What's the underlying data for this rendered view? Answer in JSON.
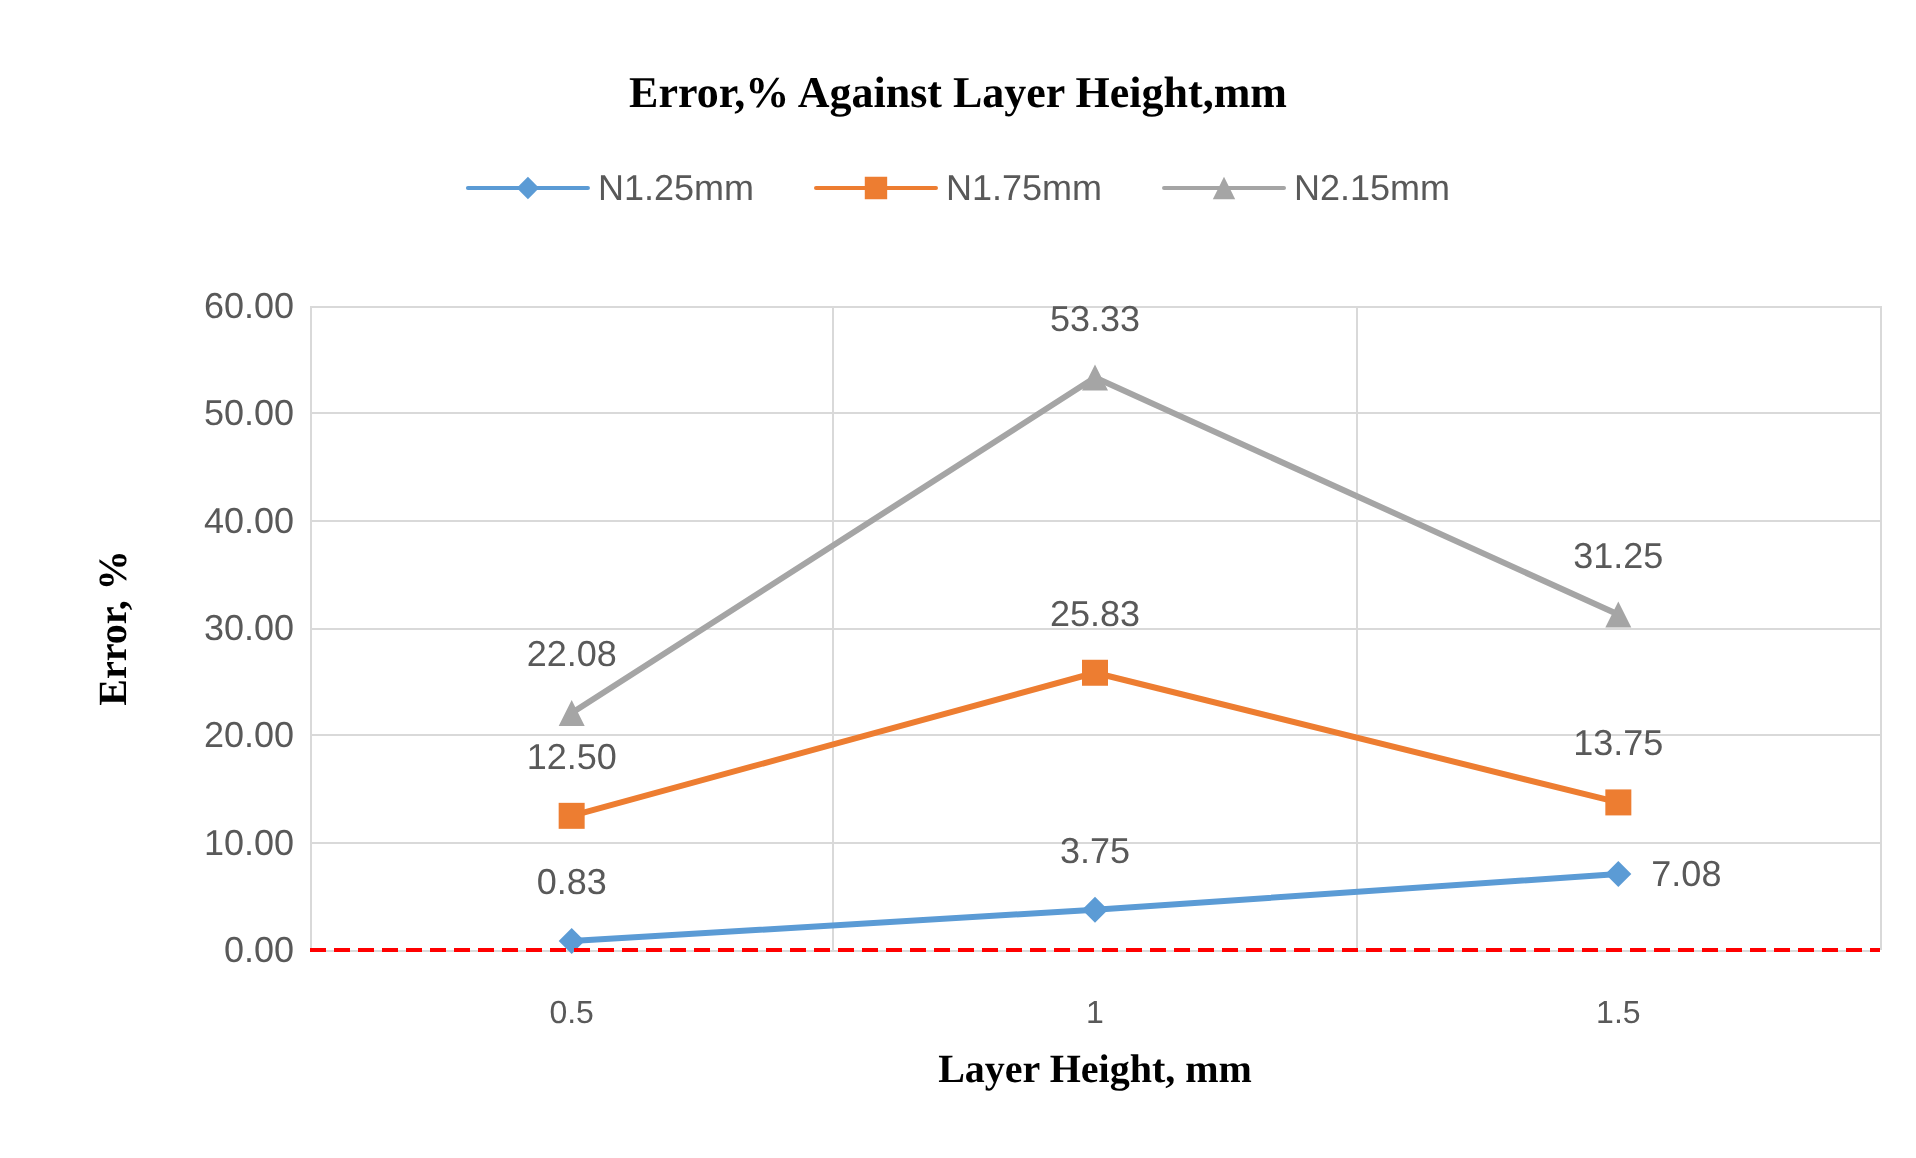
{
  "chart_data": {
    "type": "line",
    "title": "Error,% Against Layer Height,mm",
    "xlabel": "Layer Height, mm",
    "ylabel": "Error, %",
    "categories": [
      "0.5",
      "1",
      "1.5"
    ],
    "series": [
      {
        "name": "N1.25mm",
        "color": "#5b9bd5",
        "marker": "diamond",
        "values": [
          0.83,
          3.75,
          7.08
        ],
        "value_labels": [
          "0.83",
          "3.75",
          "7.08"
        ]
      },
      {
        "name": "N1.75mm",
        "color": "#ed7d31",
        "marker": "square",
        "values": [
          12.5,
          25.83,
          13.75
        ],
        "value_labels": [
          "12.50",
          "25.83",
          "13.75"
        ]
      },
      {
        "name": "N2.15mm",
        "color": "#a5a5a5",
        "marker": "triangle",
        "values": [
          22.08,
          53.33,
          31.25
        ],
        "value_labels": [
          "22.08",
          "53.33",
          "31.25"
        ]
      }
    ],
    "ylim": [
      0,
      60
    ],
    "yticks": [
      {
        "value": 0,
        "label": "0.00"
      },
      {
        "value": 10,
        "label": "10.00"
      },
      {
        "value": 20,
        "label": "20.00"
      },
      {
        "value": 30,
        "label": "30.00"
      },
      {
        "value": 40,
        "label": "40.00"
      },
      {
        "value": 50,
        "label": "50.00"
      },
      {
        "value": 60,
        "label": "60.00"
      }
    ],
    "ref_lines": [
      {
        "axis": "y",
        "value": 0,
        "color": "#ff0000",
        "line_style": "dashed"
      }
    ],
    "grid": true,
    "legend": "top",
    "line_style": "solid"
  }
}
